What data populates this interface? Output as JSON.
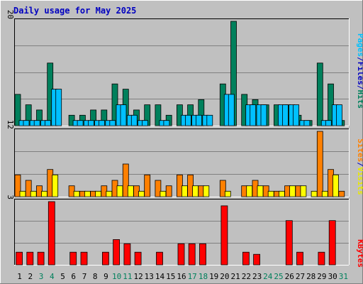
{
  "title": "Daily usage for May 2025",
  "colors": {
    "background": "#c0c0c0",
    "title": "#0000c0",
    "hits": "#00805c",
    "files": "#00c0ff",
    "pages": "#00c0ff",
    "sites": "#ff8000",
    "visits": "#ffff00",
    "kbytes": "#ff0000",
    "weekend": "#00805c",
    "grid": "#808080"
  },
  "chart_data": [
    {
      "type": "bar",
      "ylim": [
        0,
        20
      ],
      "ytick": "20",
      "legend": {
        "pages": "Pages",
        "files": "Files",
        "hits": "Hits",
        "sep1": "/",
        "sep2": "/"
      },
      "x": [
        "1",
        "2",
        "3",
        "4",
        "5",
        "6",
        "7",
        "8",
        "9",
        "10",
        "11",
        "12",
        "13",
        "14",
        "15",
        "16",
        "17",
        "18",
        "19",
        "20",
        "21",
        "22",
        "23",
        "24",
        "25",
        "26",
        "27",
        "28",
        "29",
        "30",
        "31"
      ],
      "series": [
        {
          "name": "Hits",
          "values": [
            6,
            4,
            3,
            12,
            0,
            2,
            2,
            3,
            3,
            8,
            7,
            3,
            4,
            4,
            2,
            4,
            4,
            5,
            0,
            8,
            20,
            6,
            5,
            4,
            4,
            4,
            2,
            1,
            12,
            8,
            1
          ]
        },
        {
          "name": "Files",
          "values": [
            1,
            1,
            1,
            7,
            0,
            1,
            1,
            1,
            1,
            4,
            2,
            1,
            0,
            1,
            0,
            2,
            2,
            2,
            0,
            6,
            0,
            4,
            4,
            0,
            4,
            4,
            1,
            0,
            1,
            4,
            0
          ]
        },
        {
          "name": "Pages",
          "values": [
            1,
            1,
            1,
            7,
            0,
            1,
            1,
            1,
            1,
            4,
            2,
            1,
            0,
            1,
            0,
            2,
            2,
            2,
            0,
            6,
            0,
            4,
            4,
            0,
            4,
            4,
            1,
            0,
            1,
            4,
            0
          ]
        }
      ]
    },
    {
      "type": "bar",
      "ylim": [
        0,
        12
      ],
      "ytick": "12",
      "legend": {
        "sites": "Sites",
        "visits": "Visits",
        "sep": "/"
      },
      "x": [
        "1",
        "2",
        "3",
        "4",
        "5",
        "6",
        "7",
        "8",
        "9",
        "10",
        "11",
        "12",
        "13",
        "14",
        "15",
        "16",
        "17",
        "18",
        "19",
        "20",
        "21",
        "22",
        "23",
        "24",
        "25",
        "26",
        "27",
        "28",
        "29",
        "30",
        "31"
      ],
      "series": [
        {
          "name": "Sites",
          "values": [
            4,
            3,
            2,
            5,
            0,
            2,
            1,
            1,
            2,
            3,
            6,
            2,
            4,
            3,
            2,
            4,
            4,
            2,
            0,
            3,
            0,
            2,
            3,
            2,
            1,
            2,
            2,
            0,
            12,
            5,
            1
          ]
        },
        {
          "name": "Visits",
          "values": [
            1,
            1,
            1,
            4,
            0,
            1,
            1,
            1,
            1,
            2,
            2,
            1,
            0,
            1,
            0,
            2,
            2,
            2,
            0,
            1,
            0,
            2,
            2,
            1,
            1,
            2,
            2,
            1,
            1,
            4,
            0
          ]
        }
      ]
    },
    {
      "type": "bar",
      "ylim": [
        0,
        3
      ],
      "ytick": "3",
      "legend": {
        "kbytes": "KBytes"
      },
      "x": [
        "1",
        "2",
        "3",
        "4",
        "5",
        "6",
        "7",
        "8",
        "9",
        "10",
        "11",
        "12",
        "13",
        "14",
        "15",
        "16",
        "17",
        "18",
        "19",
        "20",
        "21",
        "22",
        "23",
        "24",
        "25",
        "26",
        "27",
        "28",
        "29",
        "30",
        "31"
      ],
      "series": [
        {
          "name": "KBytes",
          "values": [
            0.6,
            0.6,
            0.6,
            3,
            0,
            0.6,
            0.6,
            0,
            0.6,
            1.2,
            1,
            0.6,
            0,
            0.6,
            0,
            1,
            1,
            1,
            0,
            2.8,
            0,
            0.6,
            0.5,
            0,
            0,
            2.1,
            0.6,
            0,
            0.6,
            2.1,
            0
          ]
        }
      ]
    }
  ],
  "x_axis": {
    "labels": [
      "1",
      "2",
      "3",
      "4",
      "5",
      "6",
      "7",
      "8",
      "9",
      "10",
      "11",
      "12",
      "13",
      "14",
      "15",
      "16",
      "17",
      "18",
      "19",
      "20",
      "21",
      "22",
      "23",
      "24",
      "25",
      "26",
      "27",
      "28",
      "29",
      "30",
      "31"
    ],
    "weekend_days": [
      "3",
      "4",
      "10",
      "11",
      "17",
      "18",
      "24",
      "25",
      "31"
    ]
  }
}
